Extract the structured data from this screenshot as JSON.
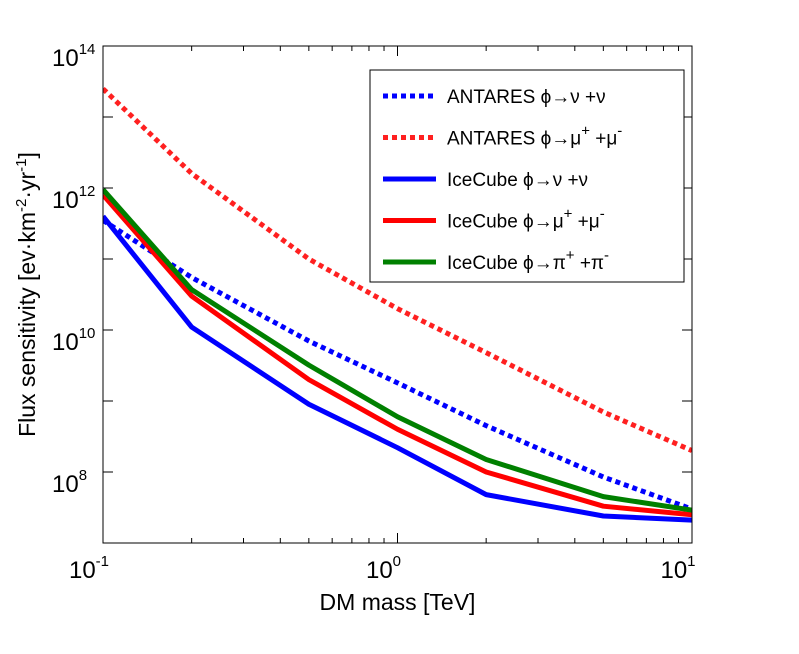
{
  "chart_data": {
    "type": "line",
    "title": "",
    "xlabel": "DM mass [TeV]",
    "ylabel_parts": [
      "Flux sensitivity [ev·km",
      "-2",
      "·yr",
      "-1",
      "]"
    ],
    "xscale": "log",
    "yscale": "log",
    "xlim": [
      0.1,
      10
    ],
    "ylim": [
      10000000.0,
      100000000000000.0
    ],
    "x_ticks": [
      {
        "value": 0.1,
        "base": "10",
        "exp": "-1"
      },
      {
        "value": 1,
        "base": "10",
        "exp": "0"
      },
      {
        "value": 10,
        "base": "10",
        "exp": "1"
      }
    ],
    "y_ticks": [
      {
        "value": 100000000.0,
        "base": "10",
        "exp": "8"
      },
      {
        "value": 10000000000.0,
        "base": "10",
        "exp": "10"
      },
      {
        "value": 1000000000000.0,
        "base": "10",
        "exp": "12"
      },
      {
        "value": 100000000000000.0,
        "base": "10",
        "exp": "14"
      }
    ],
    "grid": false,
    "legend_position": "top-right",
    "series": [
      {
        "name": "ANTARES ϕ→ν +ν",
        "legend": [
          {
            "t": "ANTARES ϕ→ν +ν"
          }
        ],
        "color": "#0000ff",
        "style": "dotted",
        "x": [
          0.1,
          0.2,
          0.5,
          1,
          2,
          5,
          10
        ],
        "y": [
          350000000000.0,
          55000000000.0,
          7000000000.0,
          1800000000.0,
          450000000.0,
          85000000.0,
          30000000.0
        ]
      },
      {
        "name": "ANTARES ϕ→μ+ +μ-",
        "legend": [
          {
            "t": "ANTARES ϕ→μ"
          },
          {
            "t": "+",
            "sup": true
          },
          {
            "t": " +μ"
          },
          {
            "t": "-",
            "sup": true
          }
        ],
        "color": "#ff2020",
        "style": "dotted",
        "x": [
          0.1,
          0.2,
          0.5,
          1,
          2,
          5,
          10
        ],
        "y": [
          25000000000000.0,
          1600000000000.0,
          100000000000.0,
          20000000000.0,
          4800000000.0,
          700000000.0,
          200000000.0
        ]
      },
      {
        "name": "IceCube ϕ→ν +ν",
        "legend": [
          {
            "t": "IceCube ϕ→ν +ν"
          }
        ],
        "color": "#0000ff",
        "style": "solid",
        "x": [
          0.1,
          0.2,
          0.5,
          1,
          2,
          5,
          10
        ],
        "y": [
          400000000000.0,
          11000000000.0,
          900000000.0,
          220000000.0,
          48000000.0,
          24000000.0,
          21000000.0
        ]
      },
      {
        "name": "IceCube ϕ→μ+ +μ-",
        "legend": [
          {
            "t": "IceCube ϕ→μ"
          },
          {
            "t": "+",
            "sup": true
          },
          {
            "t": " +μ"
          },
          {
            "t": "-",
            "sup": true
          }
        ],
        "color": "#ff0000",
        "style": "solid",
        "x": [
          0.1,
          0.2,
          0.5,
          1,
          2,
          5,
          10
        ],
        "y": [
          800000000000.0,
          30000000000.0,
          2000000000.0,
          400000000.0,
          100000000.0,
          33000000.0,
          25000000.0
        ]
      },
      {
        "name": "IceCube ϕ→π+ +π-",
        "legend": [
          {
            "t": "IceCube ϕ→π"
          },
          {
            "t": "+",
            "sup": true
          },
          {
            "t": " +π"
          },
          {
            "t": "-",
            "sup": true
          }
        ],
        "color": "#008000",
        "style": "solid",
        "x": [
          0.1,
          0.2,
          0.5,
          1,
          2,
          5,
          10
        ],
        "y": [
          950000000000.0,
          37000000000.0,
          3200000000.0,
          600000000.0,
          150000000.0,
          45000000.0,
          29000000.0
        ]
      }
    ]
  }
}
